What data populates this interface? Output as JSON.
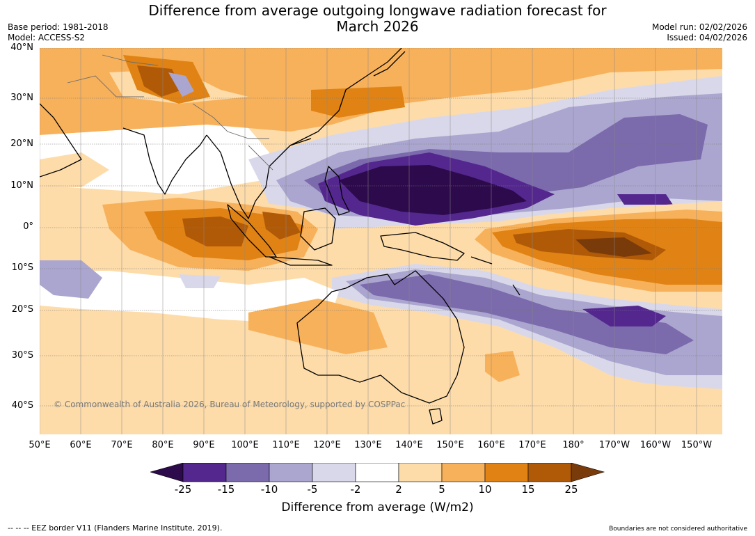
{
  "title": {
    "line1": "Difference from average outgoing longwave radiation forecast for",
    "line2": "March 2026"
  },
  "meta": {
    "base_period": "Base period: 1981-2018",
    "model": "Model: ACCESS-S2",
    "model_run": "Model run: 02/02/2026",
    "issued": "Issued: 04/02/2026"
  },
  "axes": {
    "lat_labels": [
      "40°N",
      "30°N",
      "20°N",
      "10°N",
      "0°",
      "10°S",
      "20°S",
      "30°S",
      "40°S"
    ],
    "lon_labels": [
      "50°E",
      "60°E",
      "70°E",
      "80°E",
      "90°E",
      "100°E",
      "110°E",
      "120°E",
      "130°E",
      "140°E",
      "150°E",
      "160°E",
      "170°E",
      "180°",
      "170°W",
      "160°W",
      "150°W"
    ]
  },
  "map_data": {
    "lat_range": [
      -46,
      40
    ],
    "lon_range": [
      50,
      216
    ],
    "anomaly_regions": [
      {
        "name": "strong-negative-philippine-sea",
        "level": -25
      },
      {
        "name": "strong-positive-central-pacific",
        "level": 25
      },
      {
        "name": "positive-eastern-indian-ocean",
        "level": 15
      },
      {
        "name": "negative-south-pacific",
        "level": -15
      },
      {
        "name": "positive-australia",
        "level": 5
      }
    ]
  },
  "copyright": "© Commonwealth of Australia 2026, Bureau of Meteorology, supported by COSPPac",
  "colorbar": {
    "labels": [
      "-25",
      "-15",
      "-10",
      "-5",
      "-2",
      "2",
      "5",
      "10",
      "15",
      "25"
    ],
    "colors": [
      "#2d0a4b",
      "#54278f",
      "#7b6aac",
      "#aba6cf",
      "#d9d8ea",
      "#ffffff",
      "#fddcaa",
      "#f8b15b",
      "#e08314",
      "#b05a08",
      "#7a3b0b"
    ],
    "title": "Difference from average (W/m2)"
  },
  "footer": {
    "legend": "--  --  -- EEZ border V11 (Flanders Marine Institute, 2019).",
    "note": "Boundaries are not considered authoritative"
  }
}
